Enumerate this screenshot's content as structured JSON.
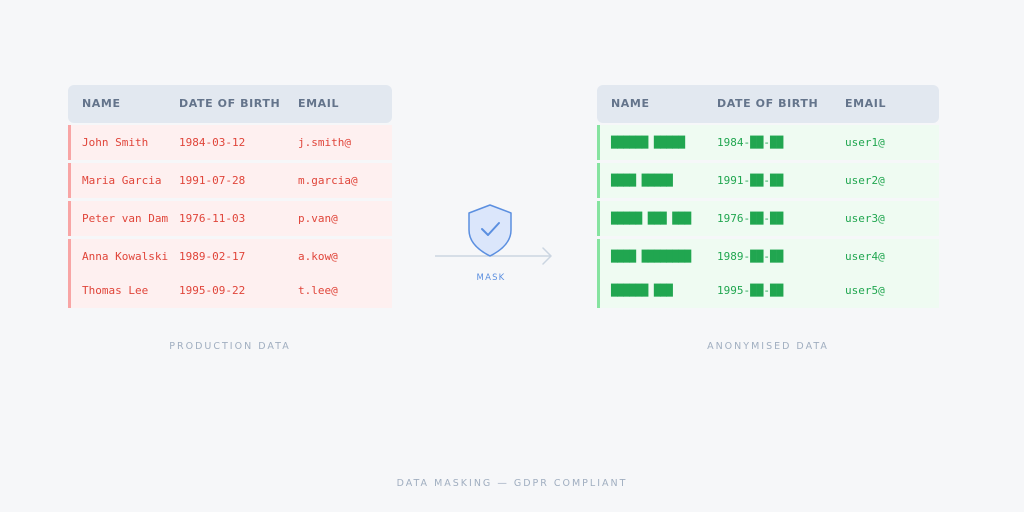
{
  "columns": [
    "NAME",
    "DATE OF BIRTH",
    "EMAIL"
  ],
  "production": {
    "caption": "PRODUCTION DATA",
    "rows": [
      {
        "name": "John Smith",
        "dob": "1984-03-12",
        "email": "j.smith@"
      },
      {
        "name": "Maria Garcia",
        "dob": "1991-07-28",
        "email": "m.garcia@"
      },
      {
        "name": "Peter van Dam",
        "dob": "1976-11-03",
        "email": "p.van@"
      },
      {
        "name": "Anna Kowalski",
        "dob": "1989-02-17",
        "email": "a.kow@"
      },
      {
        "name": "Thomas Lee",
        "dob": "1995-09-22",
        "email": "t.lee@"
      }
    ]
  },
  "anonymised": {
    "caption": "ANONYMISED DATA",
    "rows": [
      {
        "name": "██████ █████",
        "dob": "1984-██-██",
        "email": "user1@"
      },
      {
        "name": "████ █████",
        "dob": "1991-██-██",
        "email": "user2@"
      },
      {
        "name": "█████ ███ ███",
        "dob": "1976-██-██",
        "email": "user3@"
      },
      {
        "name": "████ ████████",
        "dob": "1989-██-██",
        "email": "user4@"
      },
      {
        "name": "██████ ███",
        "dob": "1995-██-██",
        "email": "user5@"
      }
    ]
  },
  "mask": {
    "label": "MASK",
    "icon": "shield-check-icon",
    "accent": "#5b8fe0"
  },
  "footer": "DATA MASKING — GDPR COMPLIANT",
  "colors": {
    "production_text": "#e0453a",
    "production_bg": "#fef0f0",
    "anonymised_text": "#21a650",
    "anonymised_bg": "#effbf2"
  }
}
